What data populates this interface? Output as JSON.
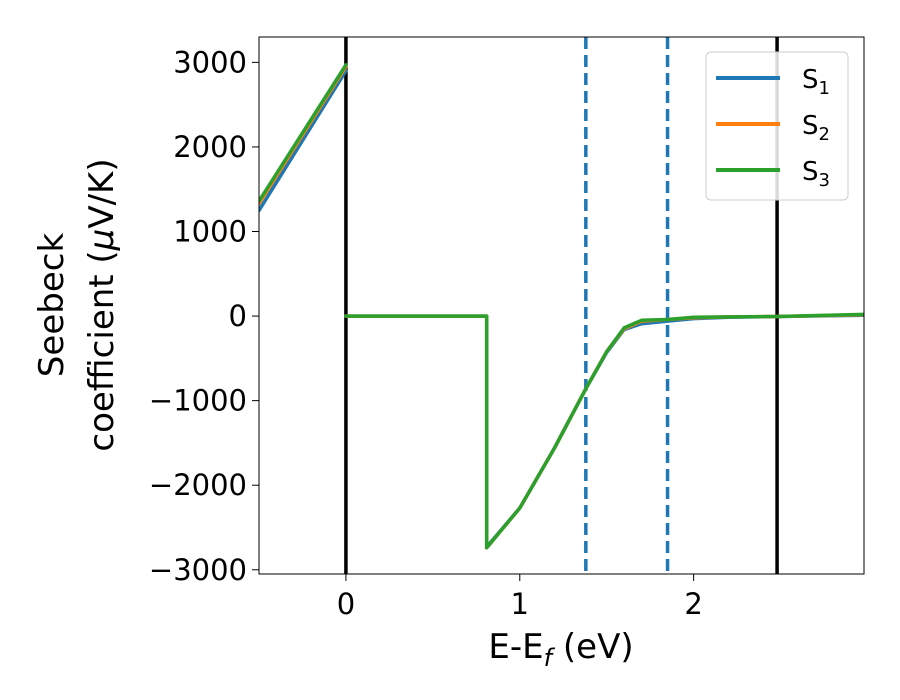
{
  "chart_data": {
    "type": "line",
    "xlabel_main": "E-E",
    "xlabel_sub": "f",
    "xlabel_unit": " (eV)",
    "ylabel_line1": "Seebeck",
    "ylabel_line2_prefix": "coefficient  (",
    "ylabel_mu": "μ",
    "ylabel_line2_suffix": "V/K)",
    "xlim": [
      -0.5,
      2.98
    ],
    "ylim": [
      -3050,
      3300
    ],
    "xticks": [
      0,
      1,
      2
    ],
    "xtick_labels": [
      "0",
      "1",
      "2"
    ],
    "yticks": [
      -3000,
      -2000,
      -1000,
      0,
      1000,
      2000,
      3000
    ],
    "ytick_labels": [
      "−3000",
      "−2000",
      "−1000",
      "0",
      "1000",
      "2000",
      "3000"
    ],
    "grid": false,
    "legend_placement": "top-right",
    "vlines_solid": [
      0,
      2.48
    ],
    "vlines_dashed": [
      1.38,
      1.85
    ],
    "vline_solid_color": "#000000",
    "vline_dashed_color": "#1f77b4",
    "series": [
      {
        "name": "S",
        "sub": "1",
        "color": "#1f77b4",
        "segments": [
          [
            [
              -0.5,
              1250
            ],
            [
              0,
              2900
            ]
          ],
          [
            [
              0,
              0
            ],
            [
              0.81,
              0
            ],
            [
              0.81,
              -2730
            ],
            [
              1.0,
              -2270
            ],
            [
              1.2,
              -1560
            ],
            [
              1.38,
              -860
            ],
            [
              1.5,
              -430
            ],
            [
              1.6,
              -160
            ],
            [
              1.7,
              -90
            ],
            [
              1.85,
              -60
            ],
            [
              2.0,
              -30
            ],
            [
              2.2,
              -15
            ],
            [
              2.48,
              -5
            ],
            [
              2.98,
              10
            ]
          ]
        ]
      },
      {
        "name": "S",
        "sub": "2",
        "color": "#ff7f0e",
        "segments": [
          [
            [
              -0.5,
              1330
            ],
            [
              0,
              2950
            ]
          ],
          [
            [
              0,
              0
            ],
            [
              0.81,
              0
            ],
            [
              0.81,
              -2740
            ],
            [
              1.0,
              -2270
            ],
            [
              1.2,
              -1560
            ],
            [
              1.38,
              -860
            ],
            [
              1.5,
              -420
            ],
            [
              1.6,
              -150
            ],
            [
              1.7,
              -60
            ],
            [
              1.85,
              -40
            ],
            [
              2.0,
              -20
            ],
            [
              2.2,
              -10
            ],
            [
              2.48,
              -5
            ],
            [
              2.98,
              15
            ]
          ]
        ]
      },
      {
        "name": "S",
        "sub": "3",
        "color": "#2ca02c",
        "segments": [
          [
            [
              -0.5,
              1360
            ],
            [
              0,
              2970
            ]
          ],
          [
            [
              0,
              0
            ],
            [
              0.81,
              0
            ],
            [
              0.81,
              -2740
            ],
            [
              1.0,
              -2270
            ],
            [
              1.2,
              -1560
            ],
            [
              1.38,
              -860
            ],
            [
              1.5,
              -420
            ],
            [
              1.6,
              -140
            ],
            [
              1.7,
              -50
            ],
            [
              1.85,
              -40
            ],
            [
              2.0,
              -15
            ],
            [
              2.2,
              -10
            ],
            [
              2.48,
              -5
            ],
            [
              2.98,
              20
            ]
          ]
        ]
      }
    ]
  }
}
